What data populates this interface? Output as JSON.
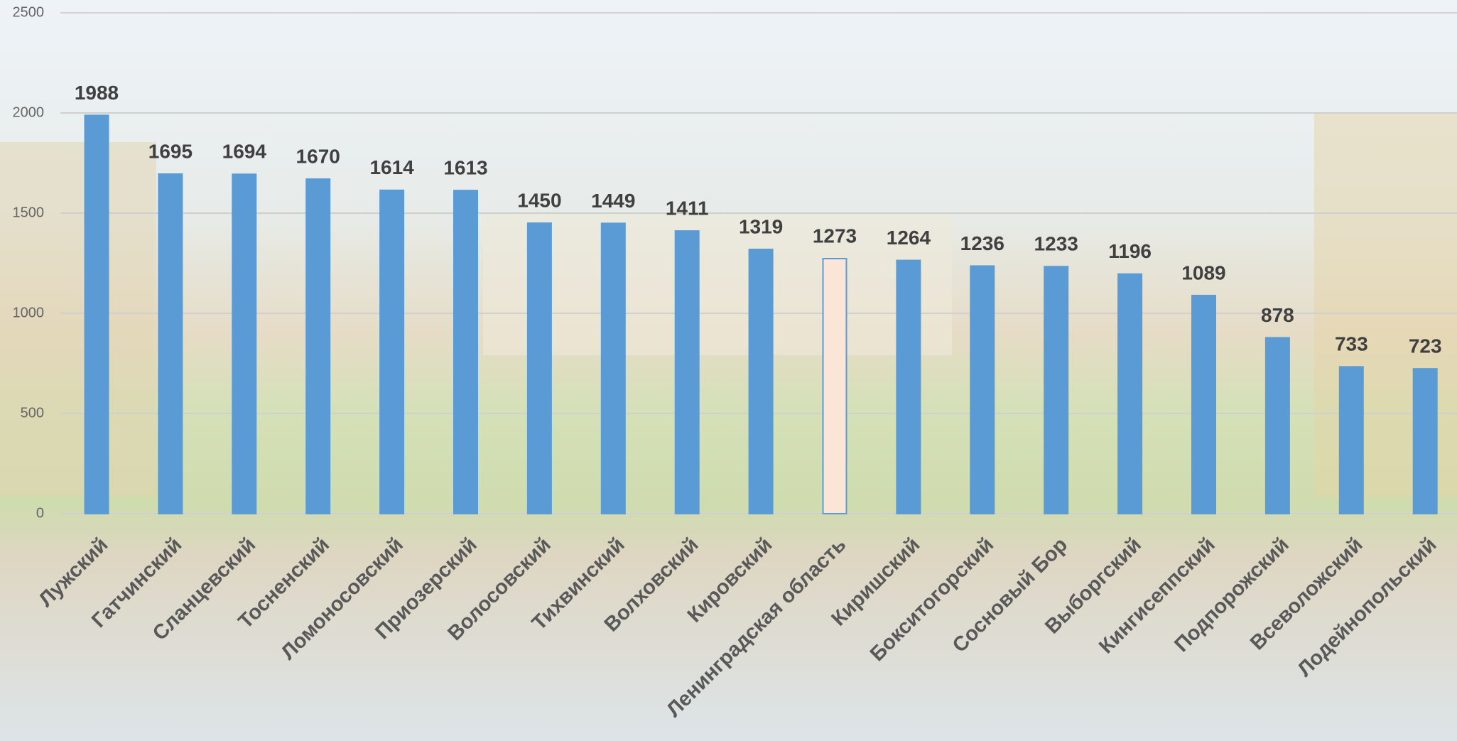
{
  "chart_data": {
    "type": "bar",
    "categories": [
      "Лужский",
      "Гатчинский",
      "Сланцевский",
      "Тосненский",
      "Ломоносовский",
      "Приозерский",
      "Волосовский",
      "Тихвинский",
      "Волховский",
      "Кировский",
      "Ленинградская область",
      "Киришский",
      "Бокситогорский",
      "Сосновый Бор",
      "Выборгский",
      "Кингисеппский",
      "Подпорожский",
      "Всеволожский",
      "Лодейнопольский"
    ],
    "values": [
      1988,
      1695,
      1694,
      1670,
      1614,
      1613,
      1450,
      1449,
      1411,
      1319,
      1273,
      1264,
      1236,
      1233,
      1196,
      1089,
      878,
      733,
      723
    ],
    "colors": [
      "#5b9bd5",
      "#5b9bd5",
      "#5b9bd5",
      "#5b9bd5",
      "#5b9bd5",
      "#5b9bd5",
      "#5b9bd5",
      "#5b9bd5",
      "#5b9bd5",
      "#5b9bd5",
      "#fbe5d6",
      "#5b9bd5",
      "#5b9bd5",
      "#5b9bd5",
      "#5b9bd5",
      "#5b9bd5",
      "#5b9bd5",
      "#5b9bd5",
      "#5b9bd5"
    ],
    "ylim": [
      0,
      2500
    ],
    "yticks": [
      0,
      500,
      1000,
      1500,
      2000,
      2500
    ],
    "grid": true
  }
}
